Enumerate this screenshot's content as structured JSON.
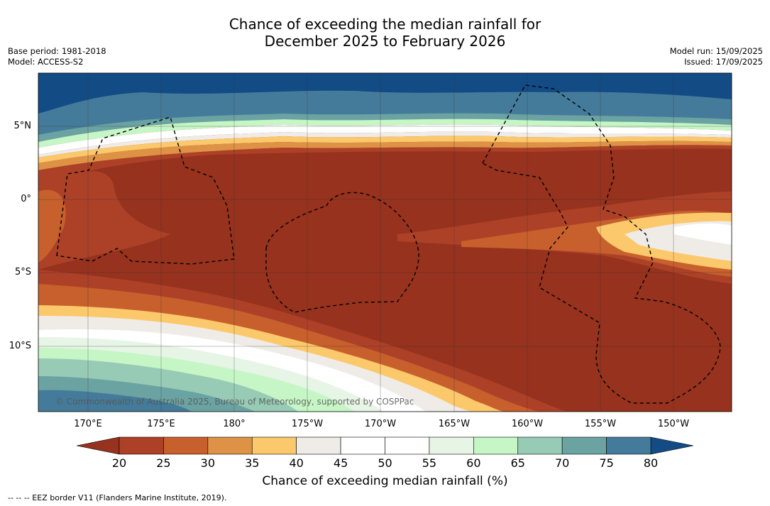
{
  "title": {
    "line1": "Chance of exceeding the median rainfall for",
    "line2": "December 2025 to February 2026"
  },
  "meta_left": {
    "base_period": "Base period: 1981-2018",
    "model": "Model: ACCESS-S2"
  },
  "meta_right": {
    "model_run": "Model run: 15/09/2025",
    "issued": "Issued: 17/09/2025"
  },
  "lat_labels": [
    "5°N",
    "0°",
    "5°S",
    "10°S"
  ],
  "lon_labels": [
    "170°E",
    "175°E",
    "180°",
    "175°W",
    "170°W",
    "165°W",
    "160°W",
    "155°W",
    "150°W"
  ],
  "copyright": "© Commonwealth of Australia 2025, Bureau of Meteorology, supported by COSPPac",
  "colorbar": {
    "ticks": [
      "20",
      "25",
      "30",
      "35",
      "40",
      "45",
      "50",
      "55",
      "60",
      "65",
      "70",
      "75",
      "80"
    ],
    "colors": [
      "#ad4128",
      "#c7602c",
      "#dd9245",
      "#fbc86b",
      "#efebe7",
      "#ffffff",
      "#ffffff",
      "#e6f5e6",
      "#c6f6c6",
      "#98cbb5",
      "#6ba3a3",
      "#457b9a"
    ],
    "below_color": "#96321e",
    "above_color": "#134b85",
    "title": "Chance of exceeding median rainfall (%)"
  },
  "legend_note": "-- -- -- EEZ border V11 (Flanders Marine Institute, 2019)."
}
